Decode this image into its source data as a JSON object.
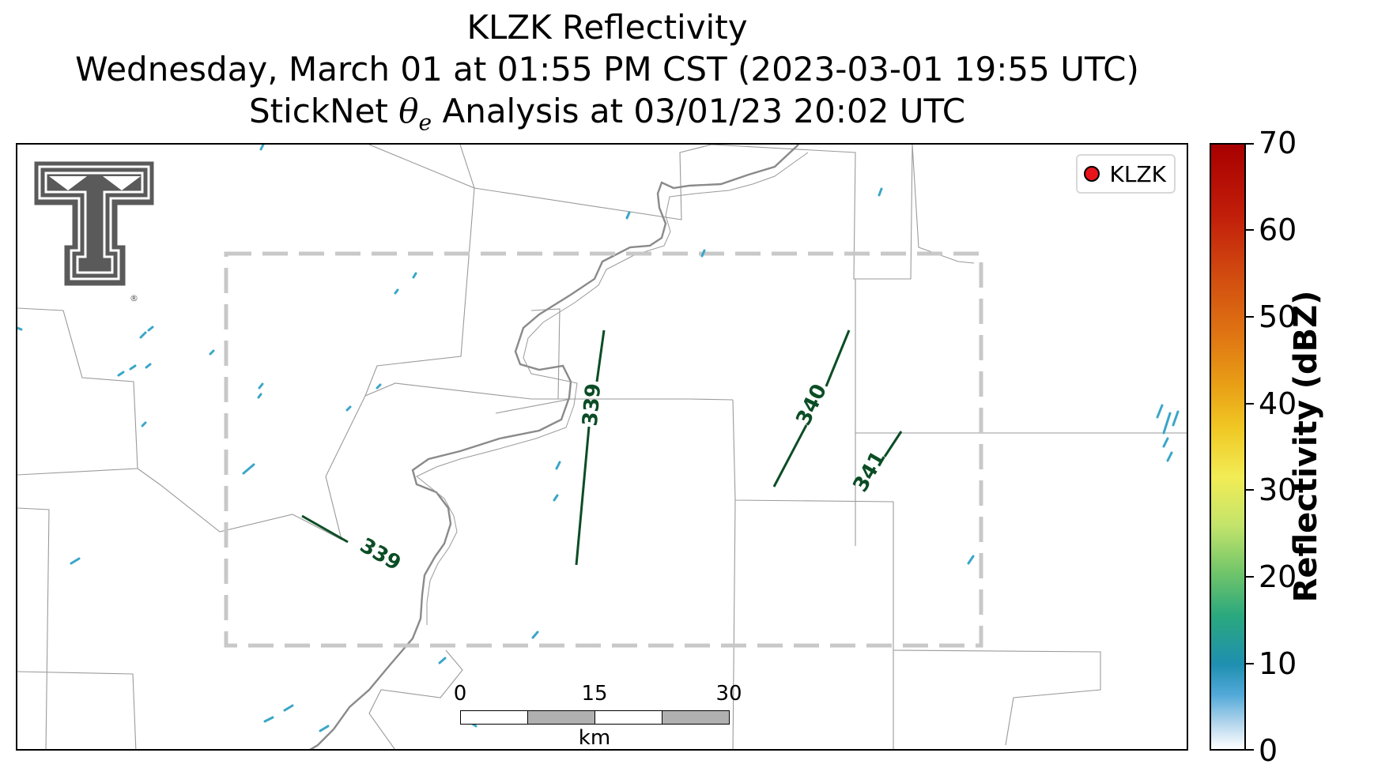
{
  "title": {
    "line1": "KLZK Reflectivity",
    "line2": "Wednesday, March 01 at 01:55 PM CST (2023-03-01 19:55 UTC)",
    "line3_prefix": "StickNet",
    "line3_symbol": "θ",
    "line3_subscript": "e",
    "line3_suffix": "Analysis at 03/01/23 20:02 UTC"
  },
  "legend": {
    "label": "KLZK",
    "marker_color": "#e8141c"
  },
  "logo": {
    "name": "texas-tech-double-t-logo",
    "mark": "®"
  },
  "scalebar": {
    "ticks": [
      "0",
      "15",
      "30"
    ],
    "unit": "km"
  },
  "colorbar": {
    "label": "Reflectivity (dBZ)",
    "min": 0,
    "max": 70,
    "ticks": [
      "0",
      "10",
      "20",
      "30",
      "40",
      "50",
      "60",
      "70"
    ],
    "colormap": "white-blue-teal-green-yellow-orange-red"
  },
  "contours": {
    "color": "#0b4d25",
    "labels": [
      "339",
      "339",
      "340",
      "341"
    ]
  },
  "colors": {
    "analysis_box": "#c8c8c8",
    "river": "#8a8a8a",
    "county_lines": "#9a9a9a",
    "echo": "#3aa6c8"
  }
}
